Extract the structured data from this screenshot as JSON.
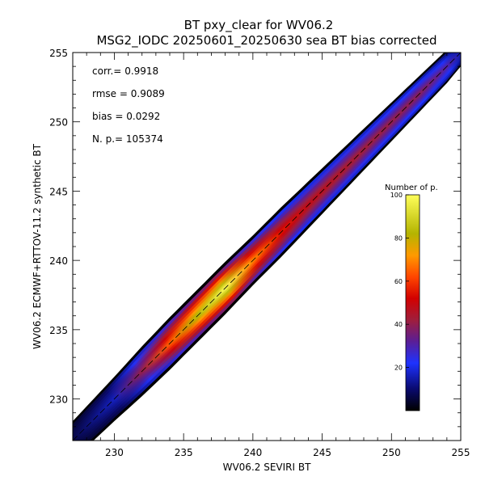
{
  "chart_data": {
    "type": "heatmap",
    "title": "BT pxy_clear for WV06.2",
    "subtitle": "MSG2_IODC 20250601_20250630 sea BT bias corrected",
    "xlabel": "WV06.2 SEVIRI BT",
    "ylabel": "WV06.2 ECMWF+RTTOV-11.2 synthetic BT",
    "xlim": [
      227,
      255
    ],
    "ylim": [
      227,
      255
    ],
    "xticks": [
      230,
      235,
      240,
      245,
      250,
      255
    ],
    "yticks": [
      230,
      235,
      240,
      245,
      250,
      255
    ],
    "grid": false,
    "reference_line": "y = x (dashed)",
    "density_band": {
      "x": [
        227,
        230,
        232,
        234,
        236,
        238,
        240,
        242,
        244,
        246,
        248,
        250,
        252,
        254,
        255
      ],
      "peak_count": [
        5,
        15,
        40,
        65,
        85,
        100,
        70,
        55,
        48,
        45,
        42,
        40,
        38,
        30,
        15
      ],
      "half_width_bt": [
        1.4,
        1.6,
        1.8,
        1.9,
        1.9,
        1.9,
        1.8,
        1.8,
        1.7,
        1.6,
        1.5,
        1.4,
        1.3,
        1.2,
        1.0
      ]
    },
    "stats": [
      {
        "label": "corr.=",
        "value": "0.9918"
      },
      {
        "label": "rmse =",
        "value": "0.9089"
      },
      {
        "label": "bias =",
        "value": "0.0292"
      },
      {
        "label": "N. p.=",
        "value": "105374"
      }
    ],
    "colorbar": {
      "title": "Number of p.",
      "range": [
        0,
        100
      ],
      "ticks": [
        20,
        40,
        60,
        80,
        100
      ],
      "colormap": "black-blue-red-yellow"
    }
  }
}
